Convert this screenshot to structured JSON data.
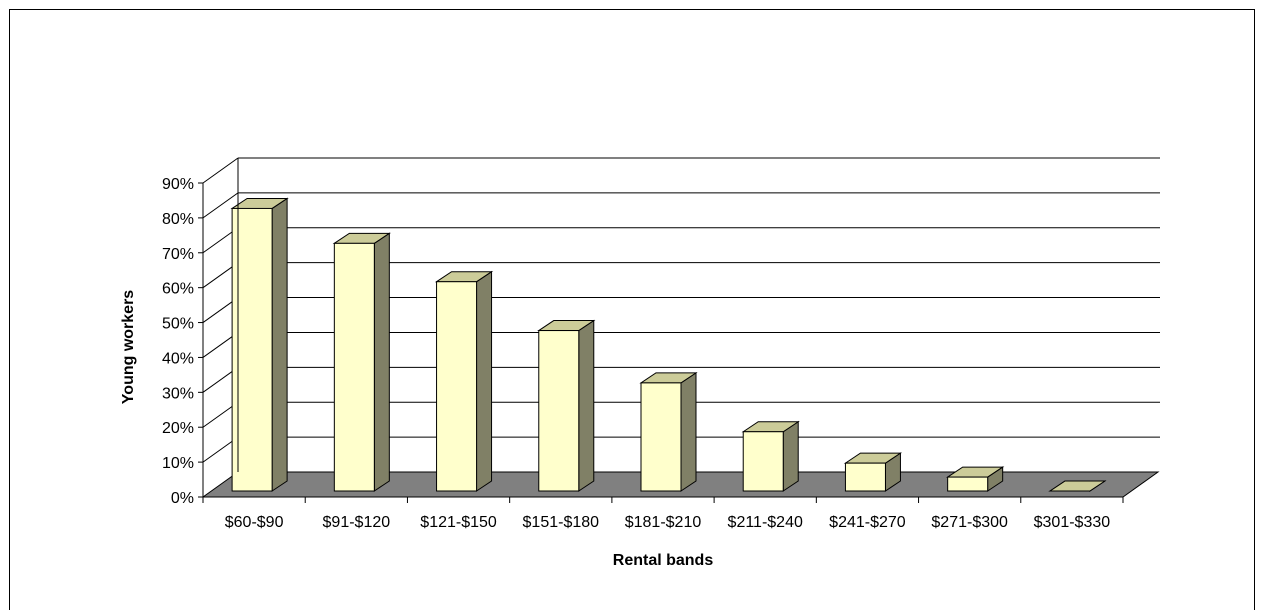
{
  "chart_data": {
    "type": "bar",
    "title": "",
    "xlabel": "Rental bands",
    "ylabel": "Young workers",
    "ylim": [
      0,
      90
    ],
    "y_ticks": [
      "0%",
      "10%",
      "20%",
      "30%",
      "40%",
      "50%",
      "60%",
      "70%",
      "80%",
      "90%"
    ],
    "categories": [
      "$60-$90",
      "$91-$120",
      "$121-$150",
      "$151-$180",
      "$181-$210",
      "$211-$240",
      "$241-$270",
      "$271-$300",
      "$301-$330"
    ],
    "values": [
      85,
      75,
      64,
      50,
      35,
      21,
      12,
      8,
      4
    ],
    "unit": "%",
    "grid": true,
    "style": "3d-column",
    "colors": {
      "bar_front": "#ffffcc",
      "bar_side": "#808066",
      "bar_top": "#cccc99",
      "floor": "#808080",
      "grid": "#000000"
    }
  }
}
